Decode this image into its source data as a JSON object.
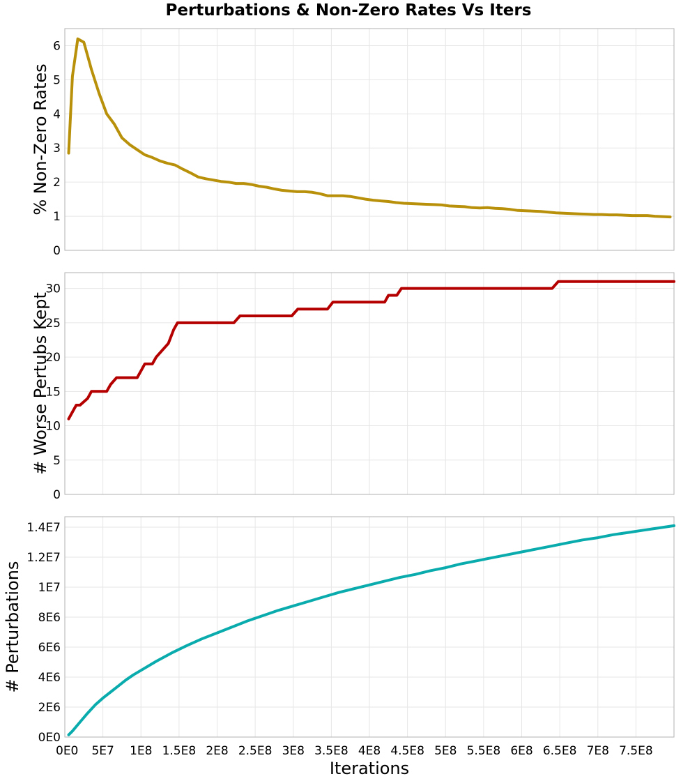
{
  "title": "Perturbations & Non-Zero Rates Vs Iters",
  "xlabel": "Iterations",
  "x_ticks": [
    "0E0",
    "5E7",
    "1E8",
    "1.5E8",
    "2E8",
    "2.5E8",
    "3E8",
    "3.5E8",
    "4E8",
    "4.5E8",
    "5E8",
    "5.5E8",
    "6E8",
    "6.5E8",
    "7E8",
    "7.5E8"
  ],
  "chart_data": [
    {
      "type": "line",
      "title": "",
      "xlabel": "",
      "ylabel": "% Non-Zero Rates",
      "xlim": [
        0,
        800000000
      ],
      "ylim": [
        0,
        6.5
      ],
      "y_ticks": [
        0,
        1,
        2,
        3,
        4,
        5,
        6
      ],
      "y_tick_labels": [
        "0",
        "1",
        "2",
        "3",
        "4",
        "5",
        "6"
      ],
      "grid": true,
      "color": "#b8900a",
      "series": [
        {
          "x": [
            5000000,
            10000000,
            17000000,
            25000000,
            35000000,
            45000000,
            55000000,
            65000000,
            75000000,
            85000000,
            95000000,
            105000000,
            115000000,
            125000000,
            135000000,
            145000000,
            155000000,
            165000000,
            175000000,
            185000000,
            195000000,
            205000000,
            215000000,
            225000000,
            235000000,
            245000000,
            255000000,
            265000000,
            275000000,
            285000000,
            295000000,
            305000000,
            315000000,
            325000000,
            335000000,
            345000000,
            355000000,
            365000000,
            375000000,
            385000000,
            395000000,
            405000000,
            415000000,
            425000000,
            435000000,
            445000000,
            455000000,
            465000000,
            475000000,
            485000000,
            495000000,
            505000000,
            515000000,
            525000000,
            535000000,
            545000000,
            555000000,
            565000000,
            575000000,
            585000000,
            595000000,
            605000000,
            615000000,
            625000000,
            635000000,
            645000000,
            655000000,
            665000000,
            675000000,
            685000000,
            695000000,
            705000000,
            715000000,
            725000000,
            735000000,
            745000000,
            755000000,
            765000000,
            775000000,
            785000000,
            795000000
          ],
          "y": [
            2.85,
            5.1,
            6.2,
            6.1,
            5.3,
            4.6,
            4.0,
            3.7,
            3.3,
            3.1,
            2.95,
            2.8,
            2.72,
            2.62,
            2.55,
            2.5,
            2.38,
            2.27,
            2.15,
            2.1,
            2.06,
            2.02,
            2.0,
            1.96,
            1.96,
            1.93,
            1.88,
            1.85,
            1.8,
            1.76,
            1.74,
            1.72,
            1.72,
            1.7,
            1.66,
            1.6,
            1.6,
            1.6,
            1.58,
            1.54,
            1.5,
            1.47,
            1.45,
            1.43,
            1.4,
            1.38,
            1.37,
            1.36,
            1.35,
            1.34,
            1.33,
            1.3,
            1.29,
            1.28,
            1.25,
            1.24,
            1.25,
            1.23,
            1.22,
            1.2,
            1.17,
            1.16,
            1.15,
            1.14,
            1.12,
            1.1,
            1.09,
            1.08,
            1.07,
            1.06,
            1.05,
            1.05,
            1.04,
            1.04,
            1.03,
            1.02,
            1.02,
            1.02,
            1.0,
            0.99,
            0.98
          ]
        }
      ]
    },
    {
      "type": "line",
      "title": "",
      "xlabel": "",
      "ylabel": "# Worse Pertubs Kept",
      "xlim": [
        0,
        800000000
      ],
      "ylim": [
        0,
        32.3
      ],
      "y_ticks": [
        0,
        5,
        10,
        15,
        20,
        25,
        30
      ],
      "y_tick_labels": [
        "0",
        "5",
        "10",
        "15",
        "20",
        "25",
        "30"
      ],
      "grid": true,
      "color": "#b50000",
      "series": [
        {
          "x": [
            5000000,
            10000000,
            15000000,
            20000000,
            30000000,
            35000000,
            55000000,
            60000000,
            68000000,
            72000000,
            95000000,
            100000000,
            105000000,
            110000000,
            115000000,
            120000000,
            128000000,
            136000000,
            143000000,
            148000000,
            155000000,
            160000000,
            200000000,
            222000000,
            230000000,
            260000000,
            298000000,
            306000000,
            312000000,
            345000000,
            352000000,
            360000000,
            400000000,
            420000000,
            425000000,
            430000000,
            436000000,
            442000000,
            640000000,
            648000000,
            654000000,
            800000000
          ],
          "y": [
            11,
            12,
            13,
            13,
            14,
            15,
            15,
            16,
            17,
            17,
            17,
            18,
            19,
            19,
            19,
            20,
            21,
            22,
            24,
            25,
            25,
            25,
            25,
            25,
            26,
            26,
            26,
            27,
            27,
            27,
            28,
            28,
            28,
            28,
            29,
            29,
            29,
            30,
            30,
            31,
            31,
            31
          ]
        }
      ]
    },
    {
      "type": "line",
      "title": "",
      "xlabel": "Iterations",
      "ylabel": "# Perturbations",
      "xlim": [
        0,
        800000000
      ],
      "ylim": [
        0,
        14700000
      ],
      "y_ticks": [
        0,
        2000000,
        4000000,
        6000000,
        8000000,
        10000000,
        12000000,
        14000000
      ],
      "y_tick_labels": [
        "0E0",
        "2E6",
        "4E6",
        "6E6",
        "8E6",
        "1E7",
        "1.2E7",
        "1.4E7"
      ],
      "grid": true,
      "color": "#0aabad",
      "series": [
        {
          "x": [
            5000000,
            10000000,
            20000000,
            30000000,
            40000000,
            50000000,
            60000000,
            70000000,
            80000000,
            90000000,
            100000000,
            120000000,
            140000000,
            160000000,
            180000000,
            200000000,
            220000000,
            240000000,
            260000000,
            280000000,
            300000000,
            320000000,
            340000000,
            360000000,
            380000000,
            400000000,
            420000000,
            440000000,
            460000000,
            480000000,
            500000000,
            520000000,
            540000000,
            560000000,
            580000000,
            600000000,
            620000000,
            640000000,
            660000000,
            680000000,
            700000000,
            720000000,
            740000000,
            760000000,
            780000000,
            800000000
          ],
          "y": [
            150000,
            400000,
            1000000,
            1600000,
            2150000,
            2600000,
            3000000,
            3400000,
            3800000,
            4150000,
            4450000,
            5050000,
            5600000,
            6100000,
            6550000,
            6950000,
            7350000,
            7750000,
            8100000,
            8450000,
            8750000,
            9050000,
            9350000,
            9650000,
            9900000,
            10150000,
            10400000,
            10650000,
            10850000,
            11100000,
            11300000,
            11550000,
            11750000,
            11950000,
            12150000,
            12350000,
            12550000,
            12750000,
            12950000,
            13150000,
            13300000,
            13500000,
            13650000,
            13800000,
            13950000,
            14100000
          ]
        }
      ]
    }
  ]
}
